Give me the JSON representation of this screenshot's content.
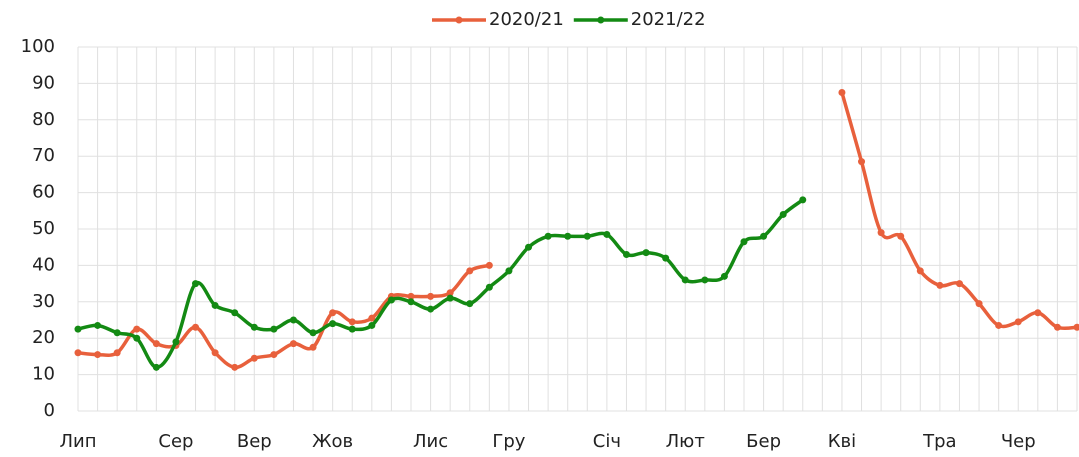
{
  "chart_data": {
    "type": "line",
    "categories": [
      "Лип",
      null,
      null,
      null,
      null,
      "Сер",
      null,
      null,
      null,
      "Вер",
      null,
      null,
      null,
      "Жов",
      null,
      null,
      null,
      null,
      "Лис",
      null,
      null,
      null,
      "Гру",
      null,
      null,
      null,
      null,
      "Січ",
      null,
      null,
      null,
      "Лют",
      null,
      null,
      null,
      "Бер",
      null,
      null,
      null,
      "Кві",
      null,
      null,
      null,
      null,
      "Тра",
      null,
      null,
      null,
      "Чер",
      null,
      null,
      null
    ],
    "series": [
      {
        "name": "2020/21",
        "color": "#e8603c",
        "values": [
          16,
          15.5,
          16,
          22.5,
          18.5,
          18,
          23,
          16,
          12,
          14.5,
          15.5,
          18.5,
          17.5,
          27,
          24.5,
          25.5,
          31.5,
          31.5,
          31.5,
          32.5,
          38.5,
          40,
          null,
          null,
          null,
          null,
          null,
          null,
          null,
          null,
          null,
          null,
          null,
          null,
          null,
          null,
          null,
          null,
          null,
          87.5,
          68.5,
          49,
          48,
          38.5,
          34.5,
          35,
          29.5,
          23.5,
          24.5,
          27,
          23,
          23
        ]
      },
      {
        "name": "2021/22",
        "color": "#138a13",
        "values": [
          22.5,
          23.5,
          21.5,
          20,
          12,
          19,
          35,
          29,
          27,
          23,
          22.5,
          25,
          21.5,
          24,
          22.5,
          23.5,
          30.5,
          30,
          28,
          31,
          29.5,
          34,
          38.5,
          45,
          48,
          48,
          48,
          48.5,
          43,
          43.5,
          42,
          36,
          36,
          37,
          46.5,
          48,
          54,
          58,
          null,
          null,
          null,
          null,
          null,
          null,
          null,
          null,
          null,
          null,
          null,
          null,
          null,
          null
        ]
      }
    ],
    "ylim": [
      0,
      100
    ],
    "yticks": [
      0,
      10,
      20,
      30,
      40,
      50,
      60,
      70,
      80,
      90,
      100
    ],
    "grid": true,
    "legend": "top"
  }
}
